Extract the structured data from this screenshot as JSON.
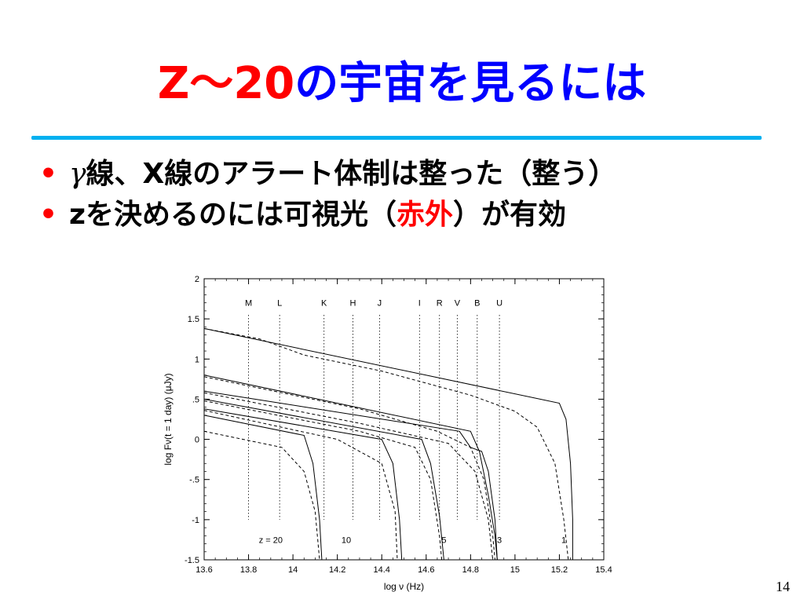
{
  "slide": {
    "title_prefix": "Z～20",
    "title_rest": "の宇宙を見るには",
    "bullets": [
      {
        "dot": "•",
        "greek": "γ",
        "text": "線、X線のアラート体制は整った（整う）"
      },
      {
        "dot": "•",
        "text_before": "zを決めるのには可視光（",
        "highlight": "赤外",
        "text_after": "）が有効"
      }
    ],
    "page_number": "14",
    "colors": {
      "title_red": "#ff0000",
      "title_blue": "#0000ff",
      "rule": "#00b0f0"
    }
  },
  "chart_data": {
    "type": "line",
    "xlabel": "log ν (Hz)",
    "ylabel": "log Fν(t = 1 day) (μJy)",
    "xlim": [
      13.6,
      15.4
    ],
    "ylim": [
      -1.5,
      2
    ],
    "x_ticks": [
      13.6,
      13.8,
      14,
      14.2,
      14.4,
      14.6,
      14.8,
      15,
      15.2,
      15.4
    ],
    "x_tick_labels": [
      "13.6",
      "13.8",
      "14",
      "14.2",
      "14.4",
      "14.6",
      "14.8",
      "15",
      "15.2",
      "15.4"
    ],
    "y_ticks": [
      -1.5,
      -1,
      -0.5,
      0,
      0.5,
      1,
      1.5,
      2
    ],
    "y_tick_labels": [
      "-1.5",
      "-1",
      "-.5",
      "0",
      ".5",
      "1",
      "1.5",
      "2"
    ],
    "grid": false,
    "bands": [
      {
        "name": "M",
        "x": 13.8
      },
      {
        "name": "L",
        "x": 13.94
      },
      {
        "name": "K",
        "x": 14.14
      },
      {
        "name": "H",
        "x": 14.27
      },
      {
        "name": "J",
        "x": 14.39
      },
      {
        "name": "I",
        "x": 14.57
      },
      {
        "name": "R",
        "x": 14.66
      },
      {
        "name": "V",
        "x": 14.74
      },
      {
        "name": "B",
        "x": 14.83
      },
      {
        "name": "U",
        "x": 14.93
      }
    ],
    "redshift_labels": [
      {
        "text": "z = 20",
        "x": 13.9
      },
      {
        "text": "10",
        "x": 14.24
      },
      {
        "text": "5",
        "x": 14.68
      },
      {
        "text": "3",
        "x": 14.93
      },
      {
        "text": "1",
        "x": 15.22
      }
    ],
    "series": [
      {
        "style": "solid",
        "points": [
          [
            13.6,
            1.38
          ],
          [
            15.2,
            0.45
          ],
          [
            15.23,
            0.25
          ],
          [
            15.25,
            -0.3
          ],
          [
            15.26,
            -1.0
          ],
          [
            15.26,
            -1.5
          ]
        ]
      },
      {
        "style": "dashed",
        "points": [
          [
            13.6,
            1.38
          ],
          [
            13.85,
            1.25
          ],
          [
            14.05,
            1.05
          ],
          [
            14.4,
            0.85
          ],
          [
            14.8,
            0.55
          ],
          [
            15.0,
            0.35
          ],
          [
            15.1,
            0.15
          ],
          [
            15.18,
            -0.3
          ],
          [
            15.22,
            -1.0
          ],
          [
            15.24,
            -1.5
          ]
        ]
      },
      {
        "style": "solid",
        "points": [
          [
            13.6,
            0.8
          ],
          [
            14.8,
            0.1
          ],
          [
            14.84,
            -0.15
          ],
          [
            14.88,
            -0.7
          ],
          [
            14.91,
            -1.2
          ],
          [
            14.92,
            -1.5
          ]
        ]
      },
      {
        "style": "dashed",
        "points": [
          [
            13.6,
            0.78
          ],
          [
            14.3,
            0.38
          ],
          [
            14.65,
            0.1
          ],
          [
            14.8,
            -0.1
          ],
          [
            14.86,
            -0.5
          ],
          [
            14.9,
            -1.2
          ],
          [
            14.91,
            -1.5
          ]
        ]
      },
      {
        "style": "solid",
        "points": [
          [
            13.6,
            0.6
          ],
          [
            14.75,
            0.1
          ],
          [
            14.8,
            -0.1
          ],
          [
            14.85,
            -0.15
          ],
          [
            14.88,
            -0.4
          ],
          [
            14.91,
            -1.0
          ],
          [
            14.92,
            -1.5
          ]
        ]
      },
      {
        "style": "dashed",
        "points": [
          [
            13.6,
            0.58
          ],
          [
            14.3,
            0.2
          ],
          [
            14.7,
            -0.05
          ],
          [
            14.82,
            -0.4
          ],
          [
            14.88,
            -1.0
          ],
          [
            14.9,
            -1.5
          ]
        ]
      },
      {
        "style": "solid",
        "points": [
          [
            13.6,
            0.5
          ],
          [
            14.58,
            0.0
          ],
          [
            14.62,
            -0.3
          ],
          [
            14.66,
            -0.95
          ],
          [
            14.68,
            -1.5
          ]
        ]
      },
      {
        "style": "dashed",
        "points": [
          [
            13.6,
            0.48
          ],
          [
            14.3,
            0.1
          ],
          [
            14.55,
            -0.1
          ],
          [
            14.62,
            -0.5
          ],
          [
            14.66,
            -1.2
          ],
          [
            14.67,
            -1.5
          ]
        ]
      },
      {
        "style": "solid",
        "points": [
          [
            13.6,
            0.38
          ],
          [
            14.4,
            0.0
          ],
          [
            14.45,
            -0.3
          ],
          [
            14.48,
            -1.0
          ],
          [
            14.49,
            -1.5
          ]
        ]
      },
      {
        "style": "dashed",
        "points": [
          [
            13.6,
            0.36
          ],
          [
            14.2,
            0.0
          ],
          [
            14.4,
            -0.3
          ],
          [
            14.46,
            -0.9
          ],
          [
            14.47,
            -1.5
          ]
        ]
      },
      {
        "style": "solid",
        "points": [
          [
            13.6,
            0.3
          ],
          [
            14.05,
            0.05
          ],
          [
            14.09,
            -0.3
          ],
          [
            14.12,
            -1.0
          ],
          [
            14.13,
            -1.5
          ]
        ]
      },
      {
        "style": "dashed",
        "points": [
          [
            13.6,
            0.1
          ],
          [
            13.95,
            -0.1
          ],
          [
            14.05,
            -0.4
          ],
          [
            14.1,
            -0.9
          ],
          [
            14.12,
            -1.5
          ]
        ]
      }
    ]
  }
}
